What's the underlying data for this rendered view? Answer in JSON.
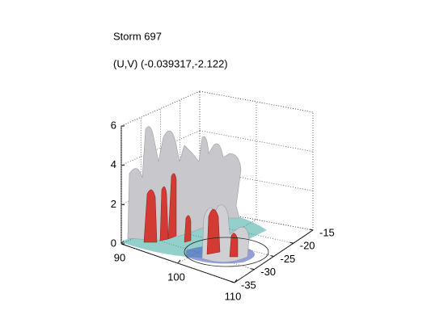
{
  "chart_data": {
    "type": "isosurface3d",
    "title": "Storm 697",
    "subtitle": "(U,V) (-0.039317,-2.122)",
    "xlim": [
      90,
      110
    ],
    "xticks": [
      90,
      100,
      110
    ],
    "ylim": [
      -35,
      -15
    ],
    "yticks": [
      -15,
      -20,
      -25,
      -30,
      -35
    ],
    "zlim": [
      0,
      6
    ],
    "zticks": [
      0,
      2,
      4,
      6
    ],
    "grid": true
  }
}
